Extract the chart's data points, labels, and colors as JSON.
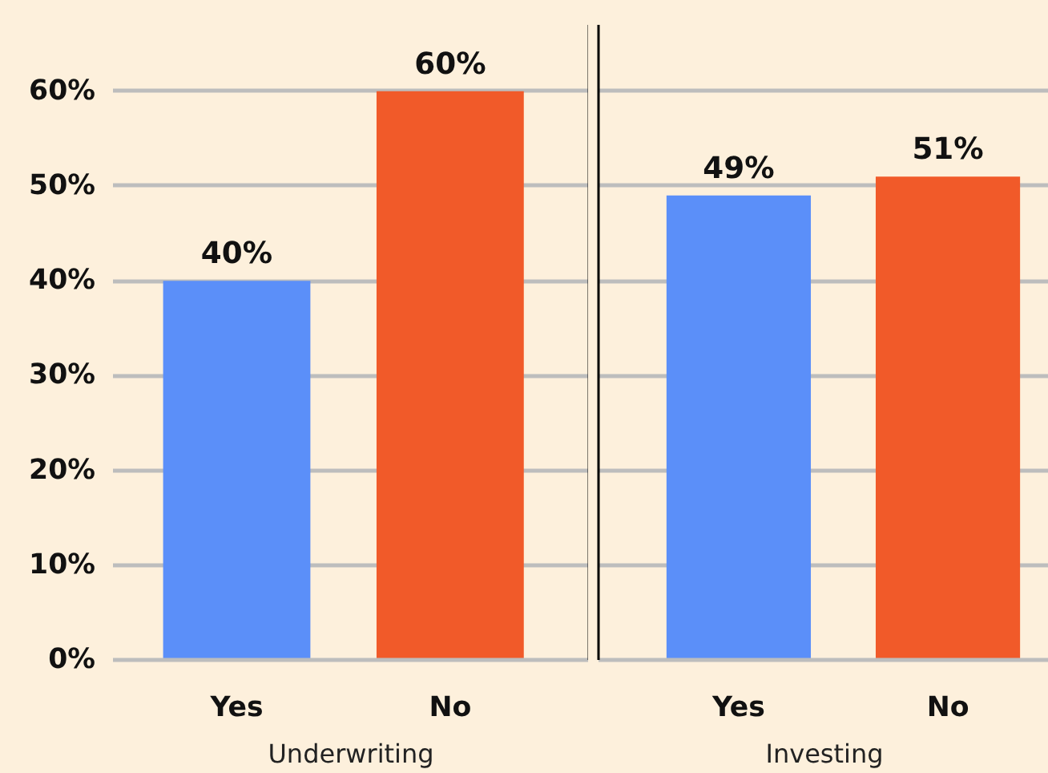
{
  "chart_data": [
    {
      "type": "bar",
      "categories": [
        "Yes",
        "No"
      ],
      "values": [
        40,
        60
      ],
      "colors": [
        "#5b8ff9",
        "#f15a29"
      ],
      "value_labels": [
        "40%",
        "60%"
      ],
      "xlabel": "Underwriting",
      "ylim": [
        0,
        67
      ],
      "yticks": [
        {
          "value": 0,
          "label": "0%"
        },
        {
          "value": 10,
          "label": "10%"
        },
        {
          "value": 20,
          "label": "20%"
        },
        {
          "value": 30,
          "label": "30%"
        },
        {
          "value": 40,
          "label": "40%"
        },
        {
          "value": 50,
          "label": "50%"
        },
        {
          "value": 60,
          "label": "60%"
        }
      ],
      "grid": "y"
    },
    {
      "type": "bar",
      "categories": [
        "Yes",
        "No"
      ],
      "values": [
        49,
        51
      ],
      "colors": [
        "#5b8ff9",
        "#f15a29"
      ],
      "value_labels": [
        "49%",
        "51%"
      ],
      "xlabel": "Investing",
      "ylim": [
        0,
        67
      ],
      "yticks": [
        {
          "value": 0,
          "label": null
        },
        {
          "value": 10,
          "label": null
        },
        {
          "value": 20,
          "label": null
        },
        {
          "value": 30,
          "label": null
        },
        {
          "value": 40,
          "label": null
        },
        {
          "value": 50,
          "label": null
        },
        {
          "value": 60,
          "label": null
        }
      ],
      "grid": "y",
      "tick_labels": "x"
    }
  ]
}
